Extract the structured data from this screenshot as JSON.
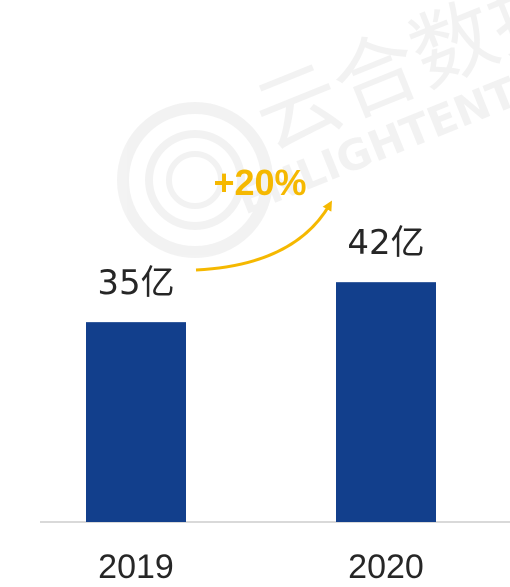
{
  "chart_data": {
    "type": "bar",
    "title": "",
    "categories": [
      "2019",
      "2020"
    ],
    "values": [
      35,
      42
    ],
    "data_labels": [
      "35亿",
      "42亿"
    ],
    "growth_label": "+20%",
    "xlabel": "",
    "ylabel": "",
    "ylim": [
      0,
      50
    ],
    "grid": false,
    "legend": "none"
  },
  "colors": {
    "bar": "#123F8C",
    "growth": "#F5B800",
    "axis": "#D9D9D9",
    "text": "#262626"
  },
  "watermark": {
    "text_cn": "云合数据",
    "text_en": "ENLIGHTENT"
  }
}
